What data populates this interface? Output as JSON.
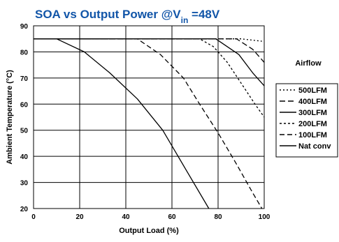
{
  "chart_data": {
    "type": "line",
    "title_main": "SOA vs Output Power @V",
    "title_sub": "in",
    "title_tail": " =48V",
    "title_color": "#1155a8",
    "xlabel": "Output Load  (%)",
    "ylabel": "Ambient Temperature (°C)",
    "xlim": [
      0,
      100
    ],
    "ylim": [
      20,
      90
    ],
    "x_ticks": [
      0,
      20,
      40,
      60,
      80,
      100
    ],
    "y_ticks": [
      20,
      30,
      40,
      50,
      60,
      70,
      80,
      90
    ],
    "grid": true,
    "legend_title": "Airflow",
    "legend_placement": "right",
    "series": [
      {
        "name": "500LFM",
        "dash": "2,3",
        "points": [
          [
            0,
            85
          ],
          [
            90,
            85
          ],
          [
            100,
            84
          ]
        ]
      },
      {
        "name": "400LFM",
        "dash": "8,4",
        "points": [
          [
            0,
            85
          ],
          [
            88,
            85
          ],
          [
            95,
            81
          ],
          [
            100,
            76
          ]
        ]
      },
      {
        "name": "300LFM",
        "dash": "",
        "points": [
          [
            0,
            85
          ],
          [
            79,
            85
          ],
          [
            89,
            79
          ],
          [
            95,
            72
          ],
          [
            100,
            67
          ]
        ]
      },
      {
        "name": "200LFM",
        "dash": "3,3",
        "points": [
          [
            0,
            85
          ],
          [
            72,
            85
          ],
          [
            78,
            82
          ],
          [
            84,
            76
          ],
          [
            90,
            68
          ],
          [
            96,
            60
          ],
          [
            100,
            55
          ]
        ]
      },
      {
        "name": "100LFM",
        "dash": "7,4",
        "points": [
          [
            0,
            85
          ],
          [
            45,
            85
          ],
          [
            55,
            79
          ],
          [
            65,
            70
          ],
          [
            72,
            60
          ],
          [
            80,
            49
          ],
          [
            88,
            37
          ],
          [
            95,
            26
          ],
          [
            99,
            20
          ]
        ]
      },
      {
        "name": "Nat conv",
        "dash": "",
        "points": [
          [
            0,
            85
          ],
          [
            10,
            85
          ],
          [
            22,
            80
          ],
          [
            33,
            72
          ],
          [
            45,
            62
          ],
          [
            56,
            50
          ],
          [
            66,
            35
          ],
          [
            76,
            20
          ]
        ]
      }
    ]
  }
}
